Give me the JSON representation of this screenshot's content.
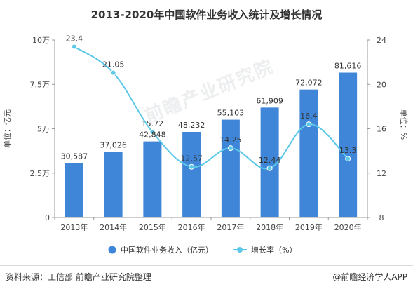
{
  "title": "2013-2020年中国软件业务收入统计及增长情况",
  "source": "资料来源：工信部 前瞻产业研究院整理",
  "copyright": "@前瞻经济学人APP",
  "watermark": "前瞻产业研究院",
  "colors": {
    "bar": "#3f86d8",
    "line": "#5cc8e8",
    "marker": "#5cc8e8",
    "axis": "#999999",
    "text": "#333333"
  },
  "chart_data": {
    "type": "bar",
    "categories": [
      "2013年",
      "2014年",
      "2015年",
      "2016年",
      "2017年",
      "2018年",
      "2019年",
      "2020年"
    ],
    "series": [
      {
        "name": "中国软件业务收入（亿元）",
        "type": "bar",
        "axis": "left",
        "values": [
          30587,
          37026,
          42848,
          48232,
          55103,
          61909,
          72072,
          81616
        ],
        "labels": [
          "30,587",
          "37,026",
          "42,848",
          "48,232",
          "55,103",
          "61,909",
          "72,072",
          "81,616"
        ]
      },
      {
        "name": "增长率（%）",
        "type": "line",
        "axis": "right",
        "values": [
          23.4,
          21.05,
          15.72,
          12.57,
          14.25,
          12.44,
          16.4,
          13.3
        ],
        "labels": [
          "23.4",
          "21.05",
          "15.72",
          "12.57",
          "14.25",
          "12.44",
          "16.4",
          "13.3"
        ]
      }
    ],
    "ylabel": "单位：亿元",
    "y2label": "单位：%",
    "ylim": [
      0,
      100000
    ],
    "y2lim": [
      8,
      24
    ],
    "yticks": [
      0,
      25000,
      50000,
      75000,
      100000
    ],
    "ytick_labels": [
      "0",
      "2.5万",
      "5万",
      "7.5万",
      "10万"
    ],
    "y2ticks": [
      8,
      12,
      16,
      20,
      24
    ],
    "y2tick_labels": [
      "8",
      "12",
      "16",
      "20",
      "24"
    ],
    "grid": false,
    "legend_position": "bottom"
  }
}
